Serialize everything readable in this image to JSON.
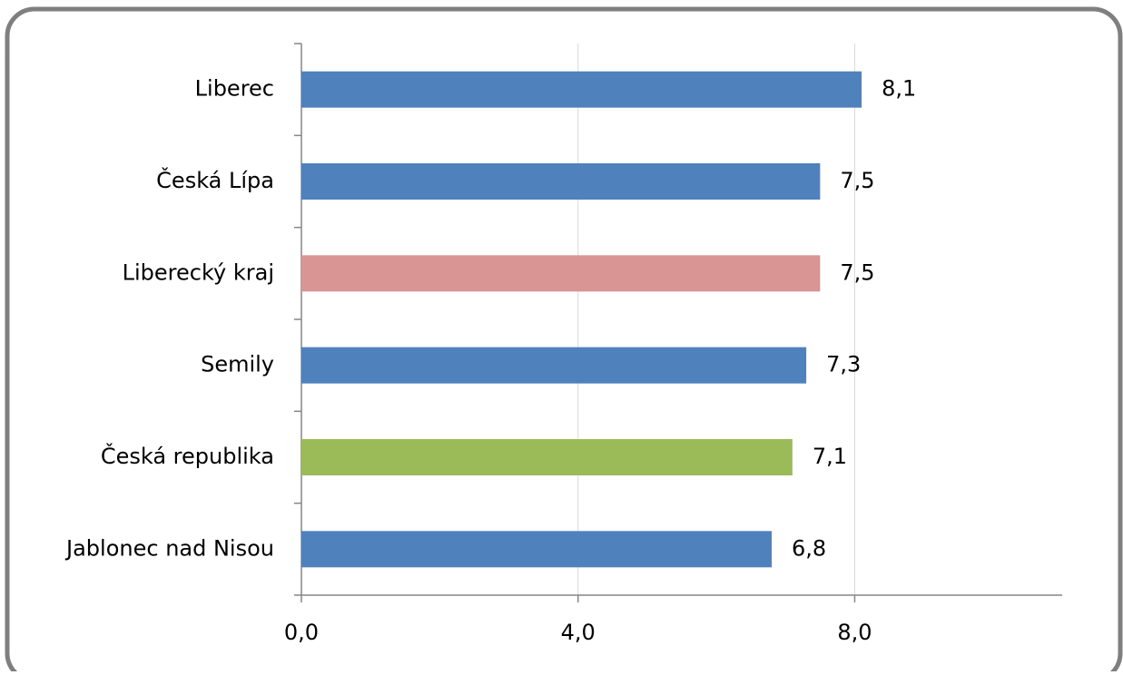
{
  "chart_data": {
    "type": "hbar",
    "categories": [
      "Liberec",
      "Česká Lípa",
      "Liberecký kraj",
      "Semily",
      "Česká republika",
      "Jablonec nad Nisou"
    ],
    "values": [
      8.1,
      7.5,
      7.5,
      7.3,
      7.1,
      6.8
    ],
    "value_labels": [
      "8,1",
      "7,5",
      "7,5",
      "7,3",
      "7,1",
      "6,8"
    ],
    "colors": [
      "#4f81bd",
      "#4f81bd",
      "#d99594",
      "#4f81bd",
      "#9bbb59",
      "#4f81bd"
    ],
    "xlim": [
      0,
      11
    ],
    "xticks": [
      {
        "value": 0,
        "label": "0,0"
      },
      {
        "value": 4,
        "label": "4,0"
      },
      {
        "value": 8,
        "label": "8,0"
      }
    ],
    "grid": true
  }
}
